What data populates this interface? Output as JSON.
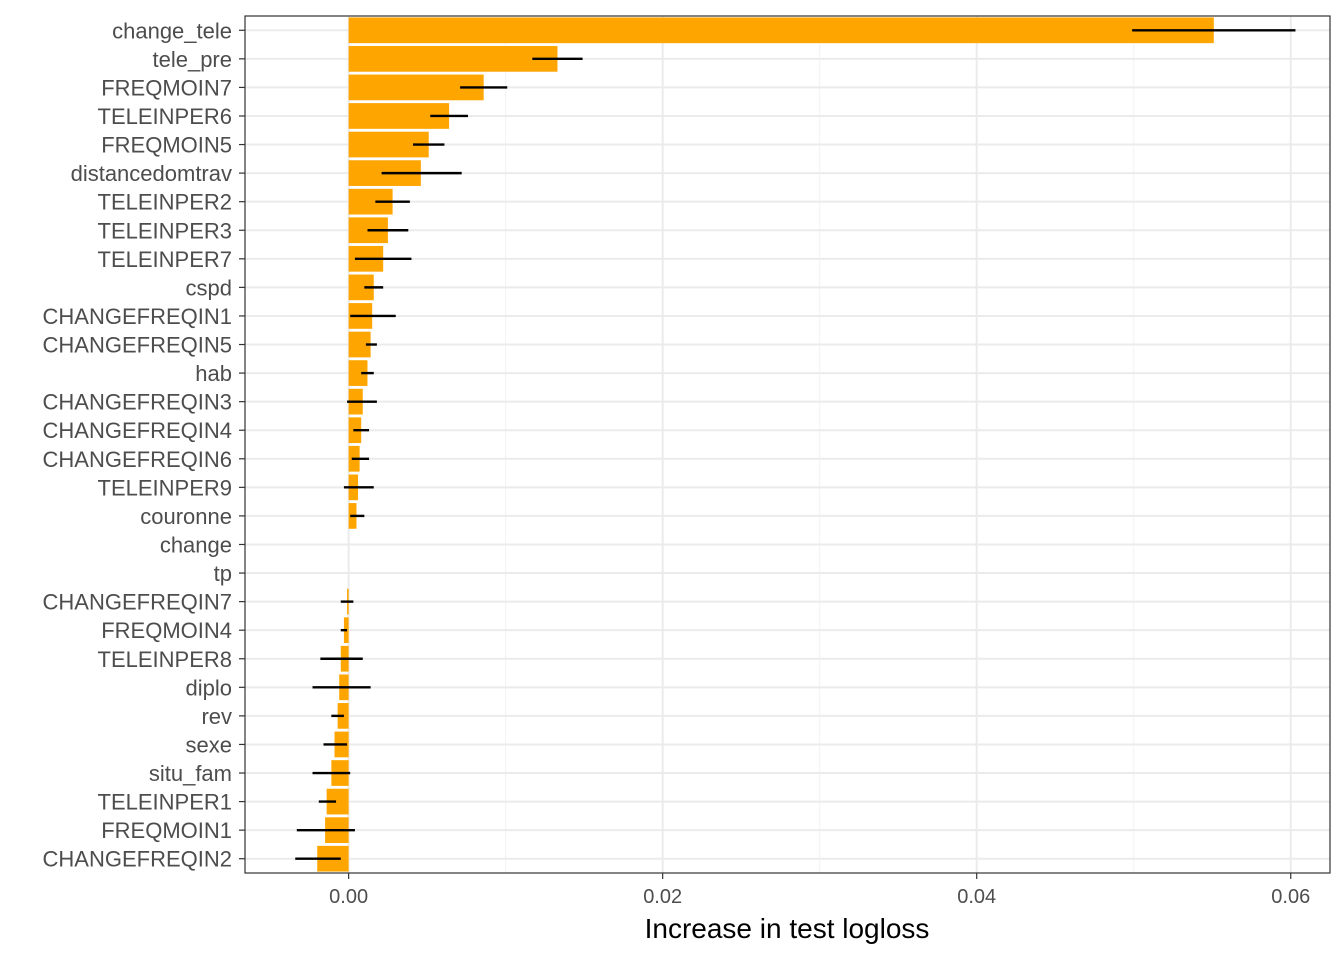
{
  "chart_data": {
    "type": "bar",
    "orientation": "horizontal",
    "xlabel": "Increase in test logloss",
    "ylabel": "",
    "xlim": [
      -0.0066,
      0.0625
    ],
    "xticks": [
      0.0,
      0.02,
      0.04,
      0.06
    ],
    "xtick_labels": [
      "0.00",
      "0.02",
      "0.04",
      "0.06"
    ],
    "grid": true,
    "bar_color": "#FFA500",
    "errorbar_color": "#000000",
    "categories": [
      "change_tele",
      "tele_pre",
      "FREQMOIN7",
      "TELEINPER6",
      "FREQMOIN5",
      "distancedomtrav",
      "TELEINPER2",
      "TELEINPER3",
      "TELEINPER7",
      "cspd",
      "CHANGEFREQIN1",
      "CHANGEFREQIN5",
      "hab",
      "CHANGEFREQIN3",
      "CHANGEFREQIN4",
      "CHANGEFREQIN6",
      "TELEINPER9",
      "couronne",
      "change",
      "tp",
      "CHANGEFREQIN7",
      "FREQMOIN4",
      "TELEINPER8",
      "diplo",
      "rev",
      "sexe",
      "situ_fam",
      "TELEINPER1",
      "FREQMOIN1",
      "CHANGEFREQIN2"
    ],
    "values": [
      0.0551,
      0.0133,
      0.0086,
      0.0064,
      0.0051,
      0.0046,
      0.0028,
      0.0025,
      0.0022,
      0.0016,
      0.0015,
      0.0014,
      0.0012,
      0.0009,
      0.0008,
      0.0007,
      0.0006,
      0.0005,
      0.0,
      0.0,
      -0.0001,
      -0.0003,
      -0.0005,
      -0.0006,
      -0.0007,
      -0.0009,
      -0.0011,
      -0.0014,
      -0.0015,
      -0.002
    ],
    "error_low": [
      0.0499,
      0.0117,
      0.0071,
      0.0052,
      0.0041,
      0.0021,
      0.0017,
      0.0012,
      0.0004,
      0.001,
      0.0001,
      0.0011,
      0.0008,
      -0.0001,
      0.0003,
      0.0002,
      -0.0003,
      0.0001,
      null,
      null,
      -0.0005,
      -0.0005,
      -0.0018,
      -0.0023,
      -0.0011,
      -0.0016,
      -0.0023,
      -0.0019,
      -0.0033,
      -0.0034
    ],
    "error_high": [
      0.0603,
      0.0149,
      0.0101,
      0.0076,
      0.0061,
      0.0072,
      0.0039,
      0.0038,
      0.004,
      0.0022,
      0.003,
      0.0018,
      0.0016,
      0.0018,
      0.0013,
      0.0013,
      0.0016,
      0.001,
      null,
      null,
      0.0003,
      -0.0001,
      0.0009,
      0.0014,
      -0.0003,
      -0.0001,
      0.0001,
      -0.0008,
      0.0004,
      -0.0005
    ]
  }
}
